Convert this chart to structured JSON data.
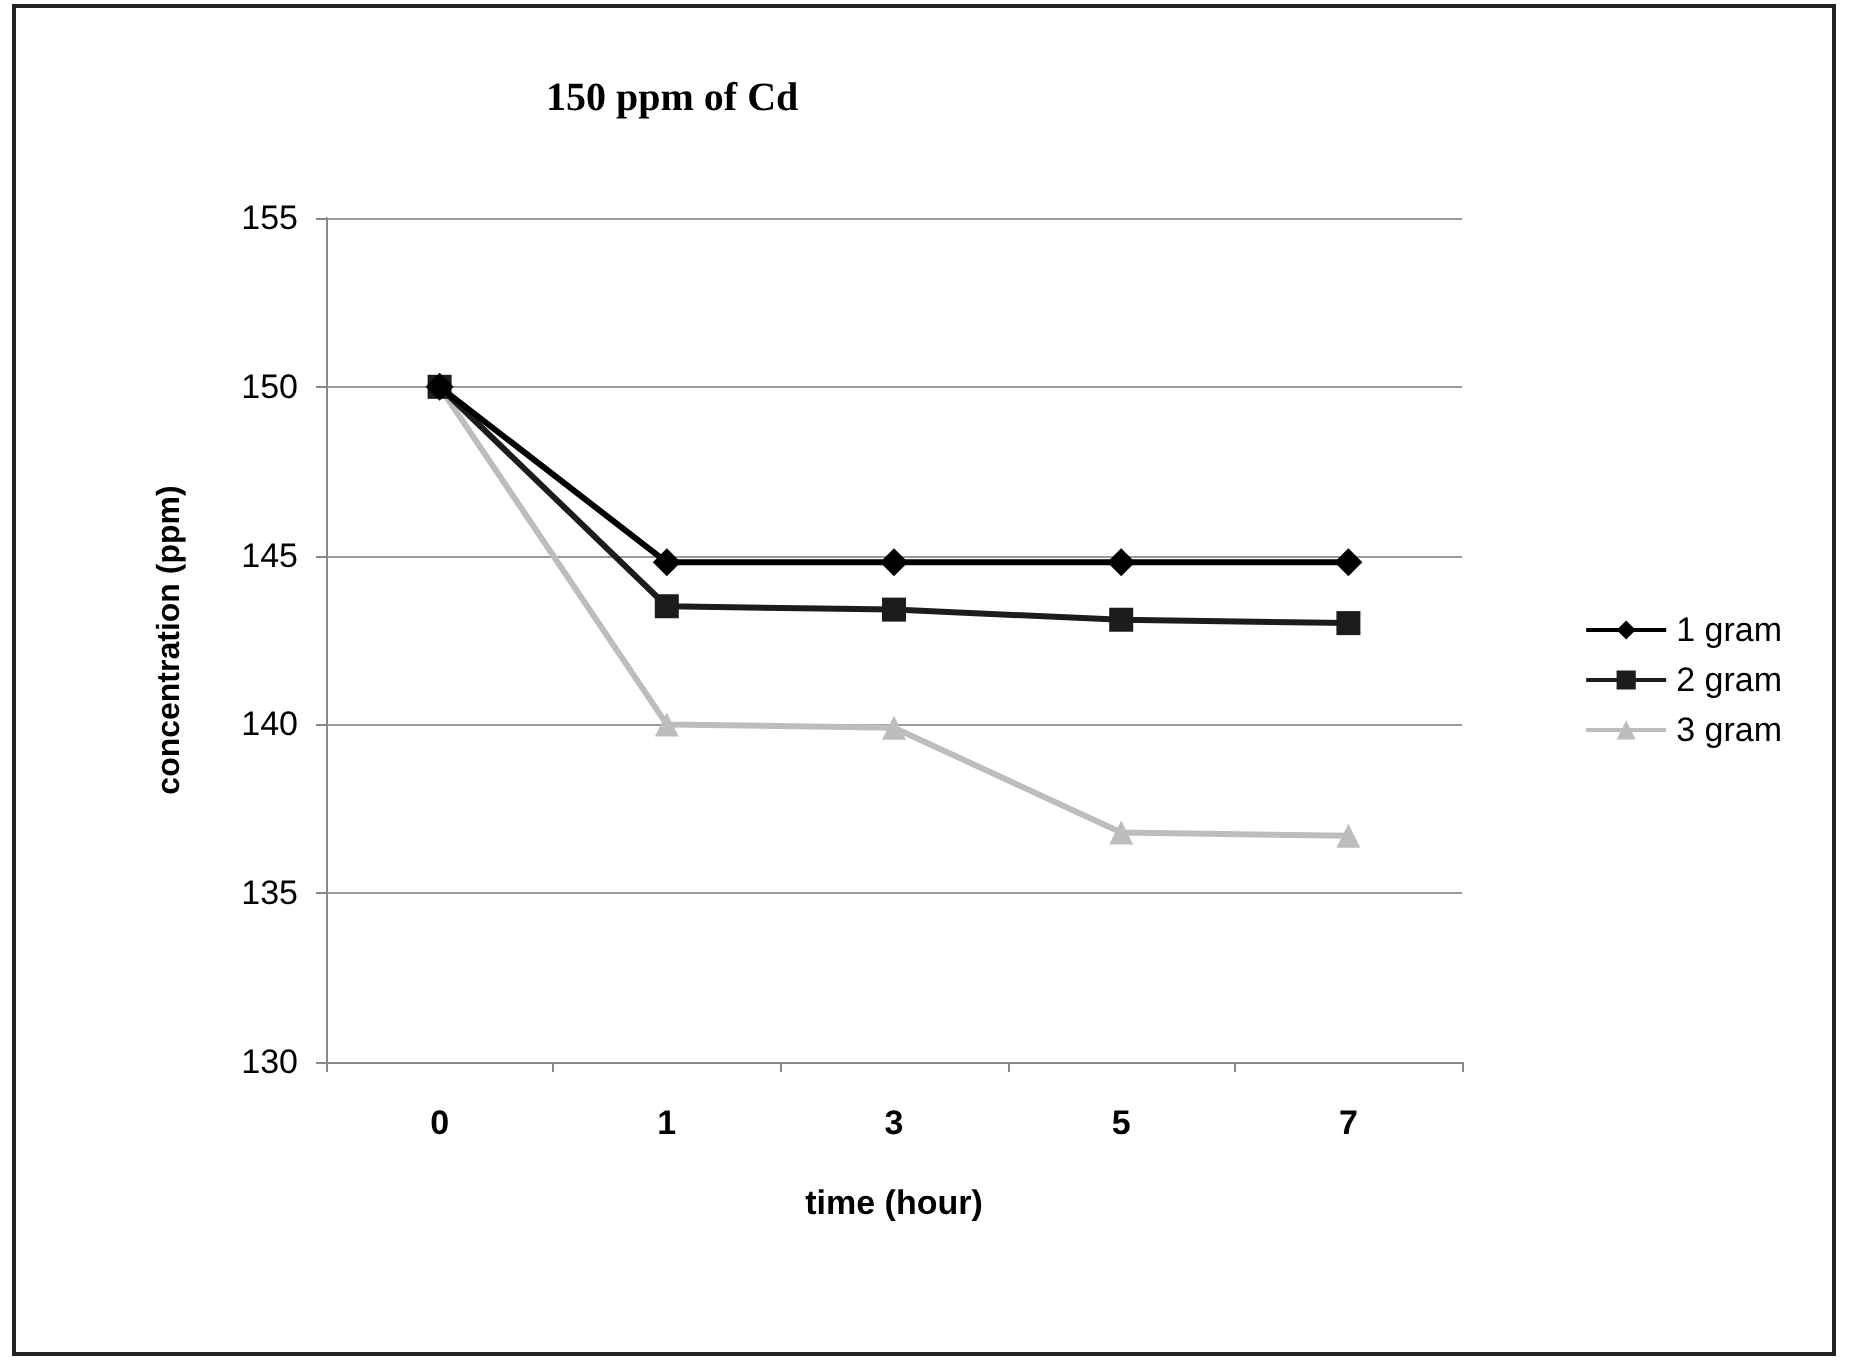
{
  "chart_data": {
    "type": "line",
    "title": "150 ppm of Cd",
    "xlabel": "time (hour)",
    "ylabel": "concentration (ppm)",
    "categories": [
      "0",
      "1",
      "3",
      "5",
      "7"
    ],
    "series": [
      {
        "name": "1 gram",
        "color": "#000000",
        "marker": "diamond",
        "values": [
          150,
          144.8,
          144.8,
          144.8,
          144.8
        ]
      },
      {
        "name": "2 gram",
        "color": "#1c1c1c",
        "marker": "square",
        "values": [
          150,
          143.5,
          143.4,
          143.1,
          143.0
        ]
      },
      {
        "name": "3 gram",
        "color": "#bdbdbd",
        "marker": "triangle",
        "values": [
          150,
          140,
          139.9,
          136.8,
          136.7
        ]
      }
    ],
    "ylim": [
      130,
      155
    ],
    "yticks": [
      130,
      135,
      140,
      145,
      150,
      155
    ],
    "grid": "y",
    "legend": "right",
    "line_style": "solid"
  }
}
